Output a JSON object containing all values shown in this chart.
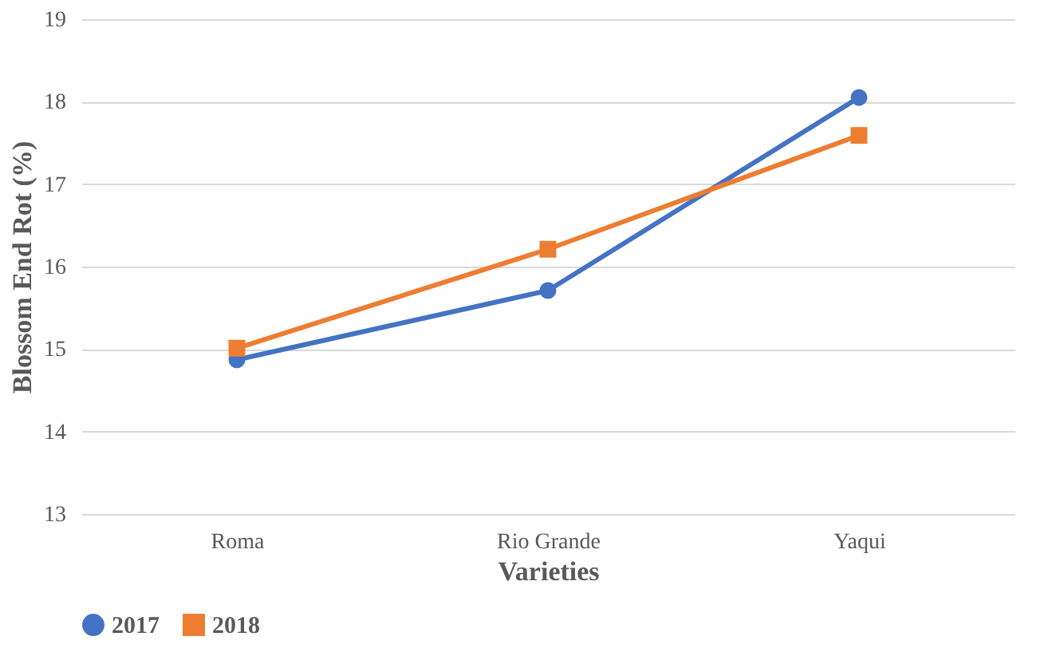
{
  "chart_data": {
    "type": "line",
    "xlabel": "Varieties",
    "ylabel": "Blossom End Rot (%)",
    "categories": [
      "Roma",
      "Rio Grande",
      "Yaqui"
    ],
    "series": [
      {
        "name": "2017",
        "color": "#4472c4",
        "marker": "circle",
        "values": [
          14.87,
          15.71,
          18.05
        ]
      },
      {
        "name": "2018",
        "color": "#ed7d31",
        "marker": "square",
        "values": [
          15.01,
          16.21,
          17.59
        ]
      }
    ],
    "ylim": [
      13,
      19
    ],
    "yticks": [
      13,
      14,
      15,
      16,
      17,
      18,
      19
    ],
    "grid": "y",
    "legend": "bottom",
    "line_style": "solid"
  }
}
